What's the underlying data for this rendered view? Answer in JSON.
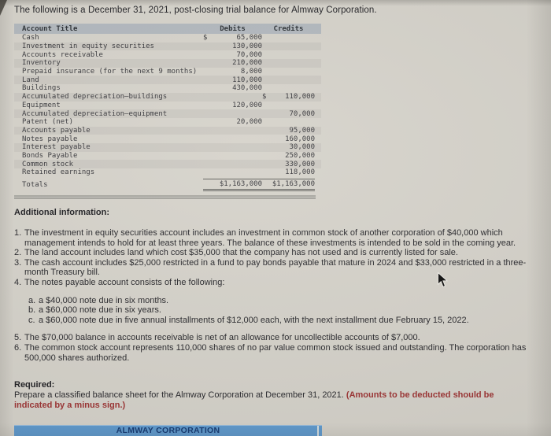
{
  "page": {
    "title": "The following is a December 31, 2021, post-closing trial balance for Almway Corporation."
  },
  "table": {
    "headers": [
      "Account Title",
      "Debits",
      "Credits"
    ],
    "rows": [
      {
        "account": "Cash",
        "debit_prefix": "$",
        "debit": "65,000",
        "credit_prefix": "",
        "credit": ""
      },
      {
        "account": "Investment in equity securities",
        "debit_prefix": "",
        "debit": "130,000",
        "credit_prefix": "",
        "credit": ""
      },
      {
        "account": "Accounts receivable",
        "debit_prefix": "",
        "debit": "70,000",
        "credit_prefix": "",
        "credit": ""
      },
      {
        "account": "Inventory",
        "debit_prefix": "",
        "debit": "210,000",
        "credit_prefix": "",
        "credit": ""
      },
      {
        "account": "Prepaid insurance (for the next 9 months)",
        "debit_prefix": "",
        "debit": "8,000",
        "credit_prefix": "",
        "credit": ""
      },
      {
        "account": "Land",
        "debit_prefix": "",
        "debit": "110,000",
        "credit_prefix": "",
        "credit": ""
      },
      {
        "account": "Buildings",
        "debit_prefix": "",
        "debit": "430,000",
        "credit_prefix": "",
        "credit": ""
      },
      {
        "account": "Accumulated depreciation–buildings",
        "debit_prefix": "",
        "debit": "",
        "credit_prefix": "$",
        "credit": "110,000"
      },
      {
        "account": "Equipment",
        "debit_prefix": "",
        "debit": "120,000",
        "credit_prefix": "",
        "credit": ""
      },
      {
        "account": "Accumulated depreciation–equipment",
        "debit_prefix": "",
        "debit": "",
        "credit_prefix": "",
        "credit": "70,000"
      },
      {
        "account": "Patent (net)",
        "debit_prefix": "",
        "debit": "20,000",
        "credit_prefix": "",
        "credit": ""
      },
      {
        "account": "Accounts payable",
        "debit_prefix": "",
        "debit": "",
        "credit_prefix": "",
        "credit": "95,000"
      },
      {
        "account": "Notes payable",
        "debit_prefix": "",
        "debit": "",
        "credit_prefix": "",
        "credit": "160,000"
      },
      {
        "account": "Interest payable",
        "debit_prefix": "",
        "debit": "",
        "credit_prefix": "",
        "credit": "30,000"
      },
      {
        "account": "Bonds Payable",
        "debit_prefix": "",
        "debit": "",
        "credit_prefix": "",
        "credit": "250,000"
      },
      {
        "account": "Common stock",
        "debit_prefix": "",
        "debit": "",
        "credit_prefix": "",
        "credit": "330,000"
      },
      {
        "account": "Retained earnings",
        "debit_prefix": "",
        "debit": "",
        "credit_prefix": "",
        "credit": "118,000"
      }
    ],
    "totals": {
      "label": "Totals",
      "debit": "$1,163,000",
      "credit": "$1,163,000"
    }
  },
  "additional_info": {
    "heading": "Additional information:",
    "items_main": [
      {
        "num": "1.",
        "text": "The investment in equity securities account includes an investment in common stock of another corporation of $40,000 which management intends to hold for at least three years. The balance of these investments is intended to be sold in the coming year."
      },
      {
        "num": "2.",
        "text": "The land account includes land which cost $35,000 that the company has not used and is currently listed for sale."
      },
      {
        "num": "3.",
        "text": "The cash account includes $25,000 restricted in a fund to pay bonds payable that mature in 2024 and $33,000 restricted in a three-month Treasury bill."
      },
      {
        "num": "4.",
        "text": "The notes payable account consists of the following:"
      }
    ],
    "items_sub": [
      {
        "num": "a.",
        "text": "a $40,000 note due in six months."
      },
      {
        "num": "b.",
        "text": "a $60,000 note due in six years."
      },
      {
        "num": "c.",
        "text": "a $60,000 note due in five annual installments of $12,000 each, with the next installment due February 15, 2022."
      }
    ],
    "items_tail": [
      {
        "num": "5.",
        "text": "The $70,000 balance in accounts receivable is net of an allowance for uncollectible accounts of $7,000."
      },
      {
        "num": "6.",
        "text": "The common stock account represents 110,000 shares of no par value common stock issued and outstanding. The corporation has 500,000 shares authorized."
      }
    ]
  },
  "required": {
    "heading": "Required:",
    "body": "Prepare a classified balance sheet for the Almway Corporation at December 31, 2021. ",
    "emphasis": "(Amounts to be deducted should be indicated by a minus sign.)"
  },
  "worksheet_bar": {
    "title": "ALMWAY CORPORATION"
  },
  "colors": {
    "page_bg": "#d6d3cb",
    "table_header_bg": "#b2b8be",
    "bar_bg": "#5f9bd0",
    "bar_text": "#143a74",
    "emphasis_text": "#9d3333"
  }
}
